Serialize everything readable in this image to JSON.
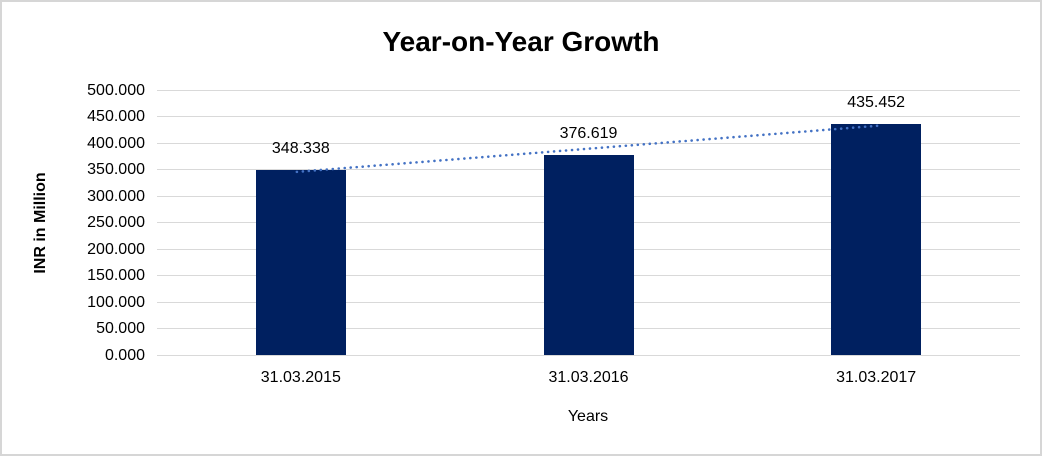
{
  "chart_data": {
    "type": "bar",
    "title": "Year-on-Year Growth",
    "categories": [
      "31.03.2015",
      "31.03.2016",
      "31.03.2017"
    ],
    "values": [
      348.338,
      376.619,
      435.452
    ],
    "value_labels": [
      "348.338",
      "376.619",
      "435.452"
    ],
    "xlabel": "Years",
    "ylabel": "INR in Million",
    "ylim": [
      0,
      500
    ],
    "ytick_labels": [
      "0.000",
      "50.000",
      "100.000",
      "150.000",
      "200.000",
      "250.000",
      "300.000",
      "350.000",
      "400.000",
      "450.000",
      "500.000"
    ],
    "grid": "horizontal",
    "legend_position": "none",
    "trendline": {
      "type": "linear",
      "style": "dotted",
      "from_category": "31.03.2015",
      "to_category": "31.03.2017"
    },
    "colors": {
      "bar": "#002060",
      "trendline": "#4472C4",
      "gridline": "#D9D9D9",
      "text": "#000000",
      "background": "#FFFFFF",
      "border": "#D6D6D6"
    }
  }
}
